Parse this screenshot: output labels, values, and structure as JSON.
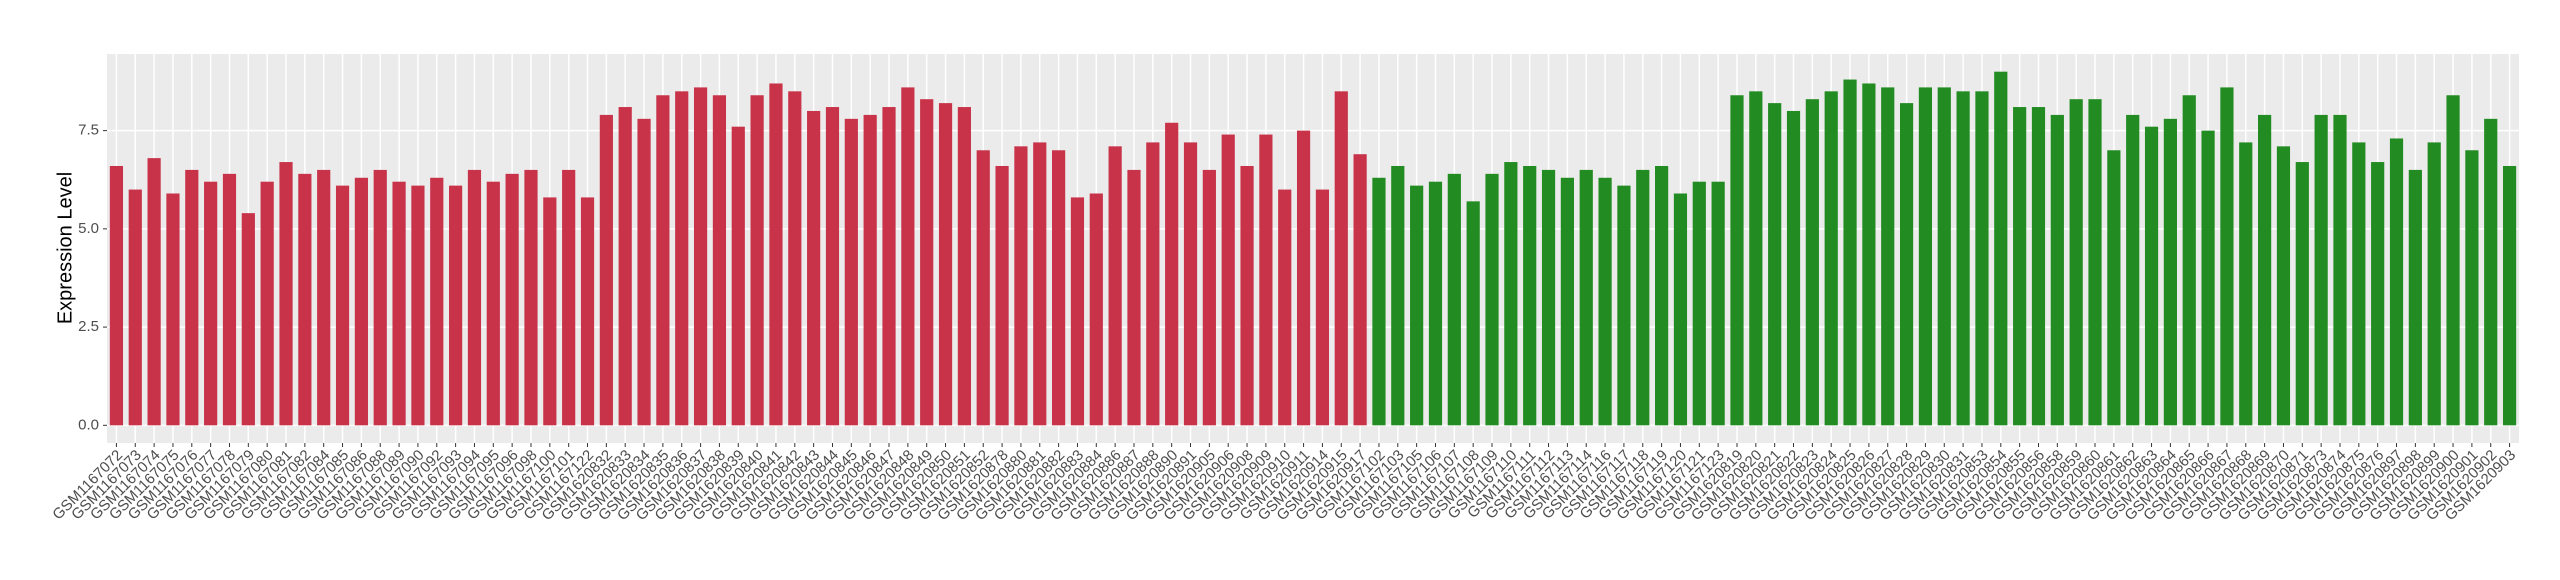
{
  "chart_data": {
    "type": "bar",
    "y_label": "Expression Level",
    "categories": [
      "GSM1167072",
      "GSM1167073",
      "GSM1167074",
      "GSM1167075",
      "GSM1167076",
      "GSM1167077",
      "GSM1167078",
      "GSM1167079",
      "GSM1167080",
      "GSM1167081",
      "GSM1167082",
      "GSM1167084",
      "GSM1167085",
      "GSM1167086",
      "GSM1167088",
      "GSM1167089",
      "GSM1167090",
      "GSM1167092",
      "GSM1167093",
      "GSM1167094",
      "GSM1167095",
      "GSM1167096",
      "GSM1167098",
      "GSM1167100",
      "GSM1167101",
      "GSM1167122",
      "GSM1620832",
      "GSM1620833",
      "GSM1620834",
      "GSM1620835",
      "GSM1620836",
      "GSM1620837",
      "GSM1620838",
      "GSM1620839",
      "GSM1620840",
      "GSM1620841",
      "GSM1620842",
      "GSM1620843",
      "GSM1620844",
      "GSM1620845",
      "GSM1620846",
      "GSM1620847",
      "GSM1620848",
      "GSM1620849",
      "GSM1620850",
      "GSM1620851",
      "GSM1620852",
      "GSM1620878",
      "GSM1620880",
      "GSM1620881",
      "GSM1620882",
      "GSM1620883",
      "GSM1620884",
      "GSM1620886",
      "GSM1620887",
      "GSM1620888",
      "GSM1620890",
      "GSM1620891",
      "GSM1620905",
      "GSM1620906",
      "GSM1620908",
      "GSM1620909",
      "GSM1620910",
      "GSM1620911",
      "GSM1620914",
      "GSM1620915",
      "GSM1620917",
      "GSM1167102",
      "GSM1167103",
      "GSM1167105",
      "GSM1167106",
      "GSM1167107",
      "GSM1167108",
      "GSM1167109",
      "GSM1167110",
      "GSM1167111",
      "GSM1167112",
      "GSM1167113",
      "GSM1167114",
      "GSM1167116",
      "GSM1167117",
      "GSM1167118",
      "GSM1167119",
      "GSM1167120",
      "GSM1167121",
      "GSM1167123",
      "GSM1620819",
      "GSM1620820",
      "GSM1620821",
      "GSM1620822",
      "GSM1620823",
      "GSM1620824",
      "GSM1620825",
      "GSM1620826",
      "GSM1620827",
      "GSM1620828",
      "GSM1620829",
      "GSM1620830",
      "GSM1620831",
      "GSM1620853",
      "GSM1620854",
      "GSM1620855",
      "GSM1620856",
      "GSM1620858",
      "GSM1620859",
      "GSM1620860",
      "GSM1620861",
      "GSM1620862",
      "GSM1620863",
      "GSM1620864",
      "GSM1620865",
      "GSM1620866",
      "GSM1620867",
      "GSM1620868",
      "GSM1620869",
      "GSM1620870",
      "GSM1620871",
      "GSM1620873",
      "GSM1620874",
      "GSM1620875",
      "GSM1620876",
      "GSM1620897",
      "GSM1620898",
      "GSM1620899",
      "GSM1620900",
      "GSM1620901",
      "GSM1620902",
      "GSM1620903"
    ],
    "values": [
      6.6,
      6.0,
      6.8,
      5.9,
      6.5,
      6.2,
      6.4,
      5.4,
      6.2,
      6.7,
      6.4,
      6.5,
      6.1,
      6.3,
      6.5,
      6.2,
      6.1,
      6.3,
      6.1,
      6.5,
      6.2,
      6.4,
      6.5,
      5.8,
      6.5,
      5.8,
      7.9,
      8.1,
      7.8,
      8.4,
      8.5,
      8.6,
      8.4,
      7.6,
      8.4,
      8.7,
      8.5,
      8.0,
      8.1,
      7.8,
      7.9,
      8.1,
      8.6,
      8.3,
      8.2,
      8.1,
      7.0,
      6.6,
      7.1,
      7.2,
      7.0,
      5.8,
      5.9,
      7.1,
      6.5,
      7.2,
      7.7,
      7.2,
      6.5,
      7.4,
      6.6,
      7.4,
      6.0,
      7.5,
      6.0,
      8.5,
      6.9,
      6.3,
      6.6,
      6.1,
      6.2,
      6.4,
      5.7,
      6.4,
      6.7,
      6.6,
      6.5,
      6.3,
      6.5,
      6.3,
      6.1,
      6.5,
      6.6,
      5.9,
      6.2,
      6.2,
      8.4,
      8.5,
      8.2,
      8.0,
      8.3,
      8.5,
      8.8,
      8.7,
      8.6,
      8.2,
      8.6,
      8.6,
      8.5,
      8.5,
      9.0,
      8.1,
      8.1,
      7.9,
      8.3,
      8.3,
      7.0,
      7.9,
      7.6,
      7.8,
      8.4,
      7.5,
      8.6,
      7.2,
      7.9,
      7.1,
      6.7,
      7.9,
      7.9,
      7.2,
      6.7,
      7.3,
      6.5,
      7.2,
      8.4,
      7.0,
      7.8,
      6.6
    ],
    "colors": [
      "#c8334a",
      "#c8334a",
      "#c8334a",
      "#c8334a",
      "#c8334a",
      "#c8334a",
      "#c8334a",
      "#c8334a",
      "#c8334a",
      "#c8334a",
      "#c8334a",
      "#c8334a",
      "#c8334a",
      "#c8334a",
      "#c8334a",
      "#c8334a",
      "#c8334a",
      "#c8334a",
      "#c8334a",
      "#c8334a",
      "#c8334a",
      "#c8334a",
      "#c8334a",
      "#c8334a",
      "#c8334a",
      "#c8334a",
      "#c8334a",
      "#c8334a",
      "#c8334a",
      "#c8334a",
      "#c8334a",
      "#c8334a",
      "#c8334a",
      "#c8334a",
      "#c8334a",
      "#c8334a",
      "#c8334a",
      "#c8334a",
      "#c8334a",
      "#c8334a",
      "#c8334a",
      "#c8334a",
      "#c8334a",
      "#c8334a",
      "#c8334a",
      "#c8334a",
      "#c8334a",
      "#c8334a",
      "#c8334a",
      "#c8334a",
      "#c8334a",
      "#c8334a",
      "#c8334a",
      "#c8334a",
      "#c8334a",
      "#c8334a",
      "#c8334a",
      "#c8334a",
      "#c8334a",
      "#c8334a",
      "#c8334a",
      "#c8334a",
      "#c8334a",
      "#c8334a",
      "#c8334a",
      "#c8334a",
      "#c8334a",
      "#228b22",
      "#228b22",
      "#228b22",
      "#228b22",
      "#228b22",
      "#228b22",
      "#228b22",
      "#228b22",
      "#228b22",
      "#228b22",
      "#228b22",
      "#228b22",
      "#228b22",
      "#228b22",
      "#228b22",
      "#228b22",
      "#228b22",
      "#228b22",
      "#228b22",
      "#228b22",
      "#228b22",
      "#228b22",
      "#228b22",
      "#228b22",
      "#228b22",
      "#228b22",
      "#228b22",
      "#228b22",
      "#228b22",
      "#228b22",
      "#228b22",
      "#228b22",
      "#228b22",
      "#228b22",
      "#228b22",
      "#228b22",
      "#228b22",
      "#228b22",
      "#228b22",
      "#228b22",
      "#228b22",
      "#228b22",
      "#228b22",
      "#228b22",
      "#228b22",
      "#228b22",
      "#228b22",
      "#228b22",
      "#228b22",
      "#228b22",
      "#228b22",
      "#228b22",
      "#228b22",
      "#228b22",
      "#228b22",
      "#228b22",
      "#228b22",
      "#228b22",
      "#228b22",
      "#228b22",
      "#228b22"
    ],
    "ylim": [
      -0.45,
      9.45
    ],
    "yticks": [
      {
        "value": 0,
        "label": "0.0"
      },
      {
        "value": 2.5,
        "label": "2.5"
      },
      {
        "value": 5,
        "label": "5.0"
      },
      {
        "value": 7.5,
        "label": "7.5"
      }
    ],
    "grid": true
  }
}
